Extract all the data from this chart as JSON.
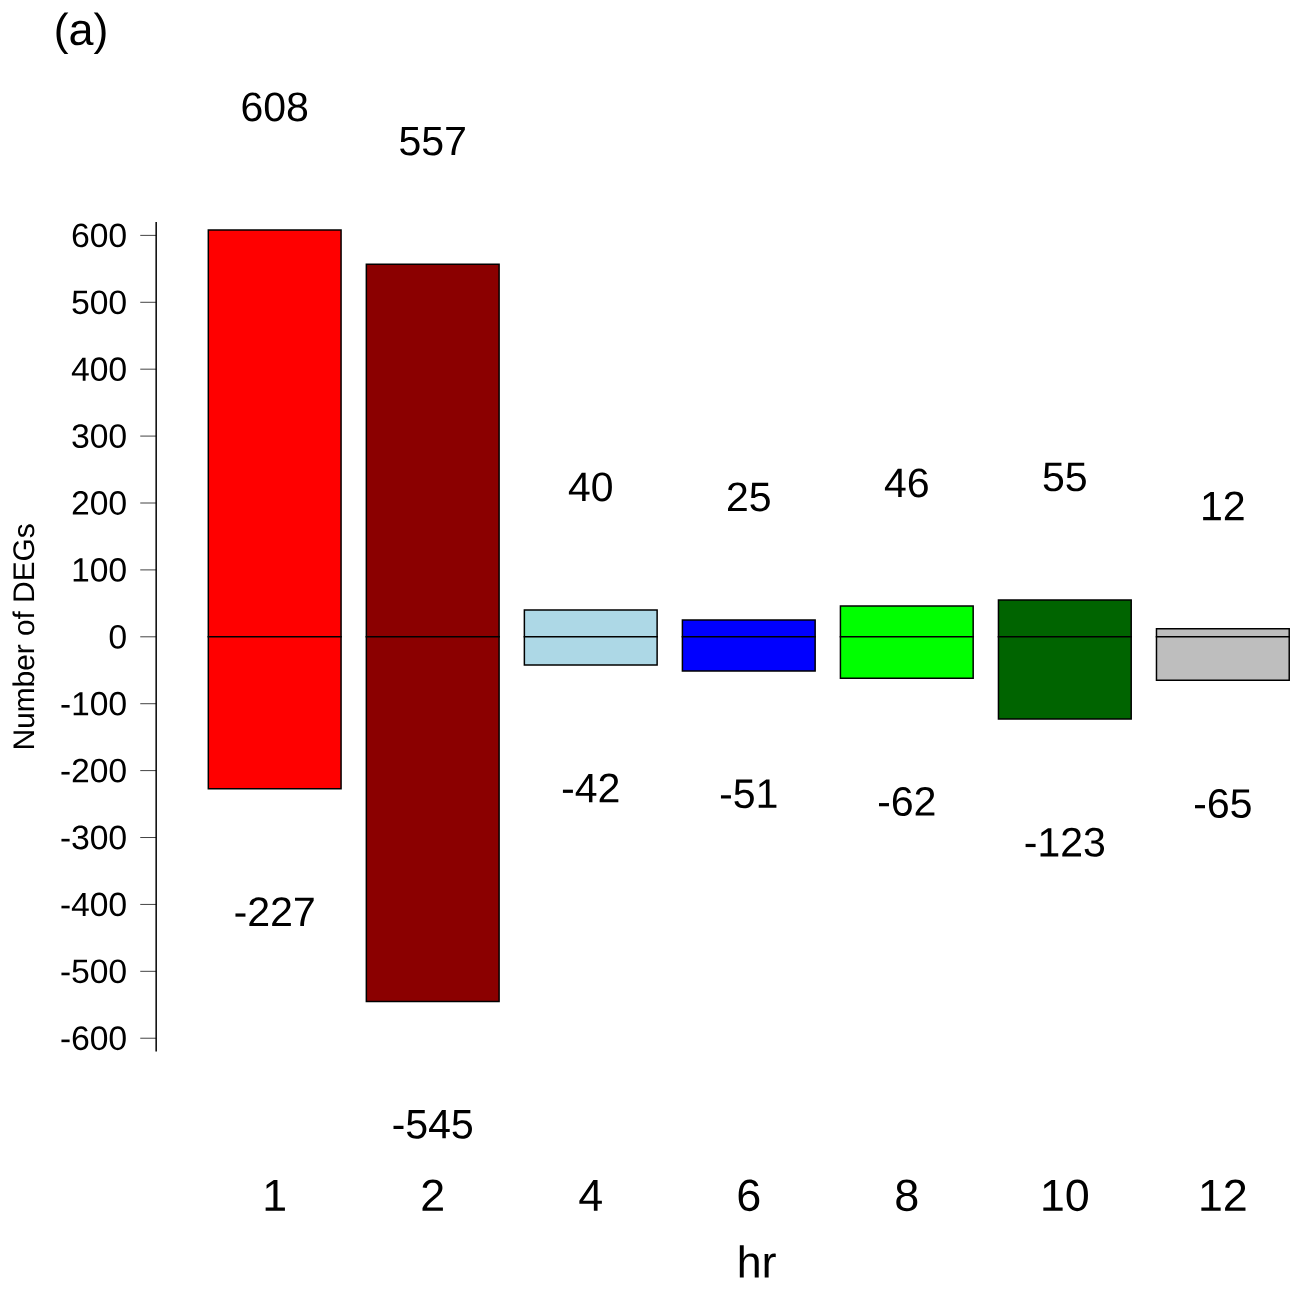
{
  "chart_data": {
    "type": "bar",
    "title": "(a)",
    "xlabel": "hr",
    "ylabel": "Number of DEGs",
    "categories": [
      "1",
      "2",
      "4",
      "6",
      "8",
      "10",
      "12"
    ],
    "series": [
      {
        "colors": [
          "#ff0000",
          "#8b0000",
          "#add8e6",
          "#0000ff",
          "#00ff00",
          "#006400",
          "#bebebe"
        ],
        "values": [
          608,
          557,
          40,
          25,
          46,
          55,
          12
        ]
      },
      {
        "colors": [
          "#ff0000",
          "#8b0000",
          "#add8e6",
          "#0000ff",
          "#00ff00",
          "#006400",
          "#bebebe"
        ],
        "values": [
          -227,
          -545,
          -42,
          -51,
          -62,
          -123,
          -65
        ]
      }
    ],
    "ylim": [
      -620,
      620
    ],
    "yticks": [
      -600,
      -500,
      -400,
      -300,
      -200,
      -100,
      0,
      100,
      200,
      300,
      400,
      500,
      600
    ],
    "data_labels": true,
    "grid": false,
    "stacked": true
  }
}
